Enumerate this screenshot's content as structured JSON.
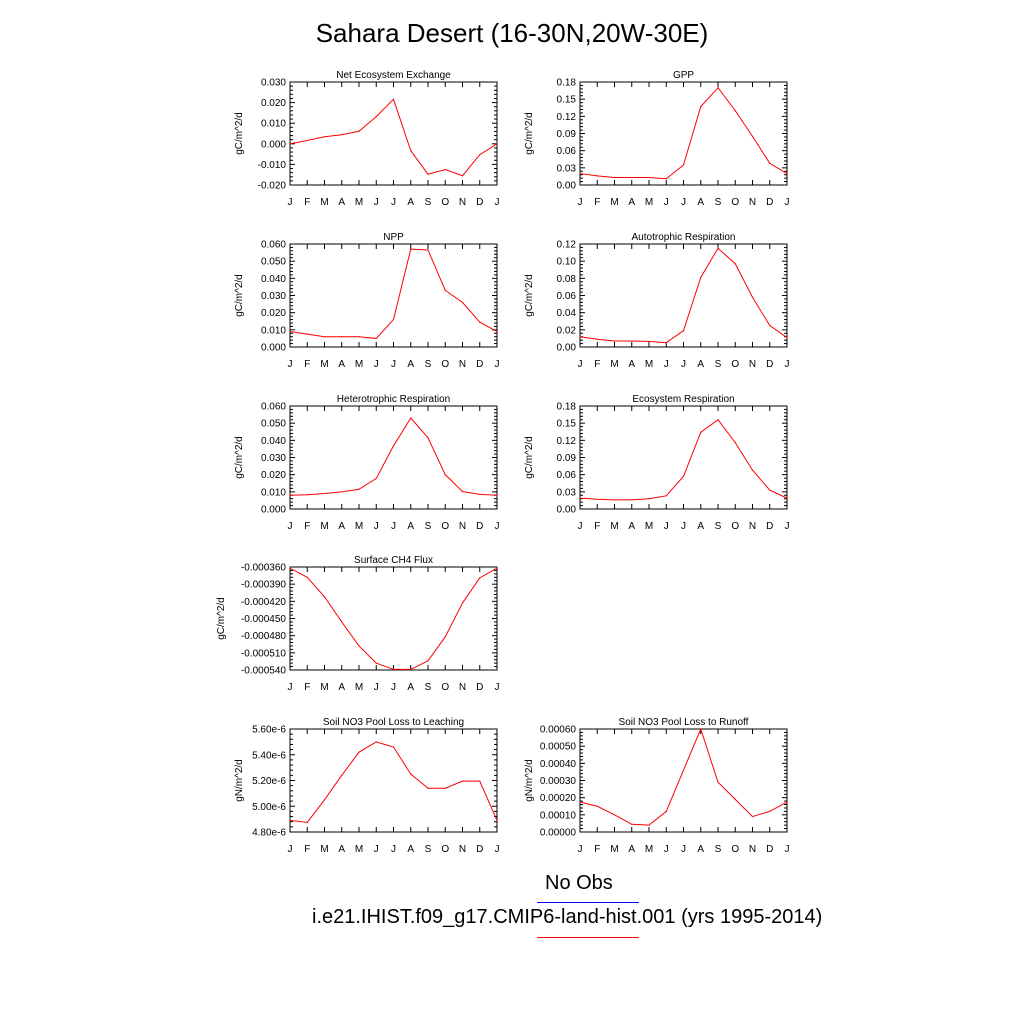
{
  "title": "Sahara Desert (16-30N,20W-30E)",
  "colors": {
    "model": "#ff0000",
    "obs": "#0000ff",
    "axis": "#000000"
  },
  "legend": [
    {
      "label": "No Obs",
      "color": "#0000ff"
    },
    {
      "label": "i.e21.IHIST.f09_g17.CMIP6-land-hist.001 (yrs 1995-2014)",
      "color": "#ff0000"
    }
  ],
  "chart_data": [
    {
      "type": "line",
      "title": "Net Ecosystem Exchange",
      "ylabel": "gC/m^2/d",
      "categories": [
        "J",
        "F",
        "M",
        "A",
        "M",
        "J",
        "J",
        "A",
        "S",
        "O",
        "N",
        "D",
        "J"
      ],
      "ylim": [
        -0.02,
        0.03
      ],
      "yticks": [
        -0.02,
        -0.01,
        0.0,
        0.01,
        0.02,
        0.03
      ],
      "ytick_labels": [
        "-0.020",
        "-0.010",
        "0.000",
        "0.010",
        "0.020",
        "0.030"
      ],
      "series": [
        {
          "values": [
            0.0,
            0.0016,
            0.0034,
            0.0044,
            0.0061,
            0.0132,
            0.0216,
            -0.0033,
            -0.0148,
            -0.0125,
            -0.0155,
            -0.0053,
            0.0
          ]
        }
      ]
    },
    {
      "type": "line",
      "title": "GPP",
      "ylabel": "gC/m^2/d",
      "categories": [
        "J",
        "F",
        "M",
        "A",
        "M",
        "J",
        "J",
        "A",
        "S",
        "O",
        "N",
        "D",
        "J"
      ],
      "ylim": [
        0,
        0.18
      ],
      "yticks": [
        0,
        0.03,
        0.06,
        0.09,
        0.12,
        0.15,
        0.18
      ],
      "ytick_labels": [
        "0.00",
        "0.03",
        "0.06",
        "0.09",
        "0.12",
        "0.15",
        "0.18"
      ],
      "series": [
        {
          "values": [
            0.02,
            0.016,
            0.013,
            0.013,
            0.013,
            0.011,
            0.035,
            0.137,
            0.17,
            0.13,
            0.085,
            0.038,
            0.02
          ]
        }
      ]
    },
    {
      "type": "line",
      "title": "NPP",
      "ylabel": "gC/m^2/d",
      "categories": [
        "J",
        "F",
        "M",
        "A",
        "M",
        "J",
        "J",
        "A",
        "S",
        "O",
        "N",
        "D",
        "J"
      ],
      "ylim": [
        0,
        0.06
      ],
      "yticks": [
        0,
        0.01,
        0.02,
        0.03,
        0.04,
        0.05,
        0.06
      ],
      "ytick_labels": [
        "0.000",
        "0.010",
        "0.020",
        "0.030",
        "0.040",
        "0.050",
        "0.060"
      ],
      "series": [
        {
          "values": [
            0.009,
            0.0075,
            0.006,
            0.006,
            0.006,
            0.005,
            0.016,
            0.057,
            0.0565,
            0.033,
            0.026,
            0.0145,
            0.009
          ]
        }
      ]
    },
    {
      "type": "line",
      "title": "Autotrophic Respiration",
      "ylabel": "gC/m^2/d",
      "categories": [
        "J",
        "F",
        "M",
        "A",
        "M",
        "J",
        "J",
        "A",
        "S",
        "O",
        "N",
        "D",
        "J"
      ],
      "ylim": [
        0,
        0.12
      ],
      "yticks": [
        0,
        0.02,
        0.04,
        0.06,
        0.08,
        0.1,
        0.12
      ],
      "ytick_labels": [
        "0.00",
        "0.02",
        "0.04",
        "0.06",
        "0.08",
        "0.10",
        "0.12"
      ],
      "series": [
        {
          "values": [
            0.012,
            0.009,
            0.007,
            0.007,
            0.0065,
            0.005,
            0.019,
            0.081,
            0.115,
            0.097,
            0.058,
            0.025,
            0.011
          ]
        }
      ]
    },
    {
      "type": "line",
      "title": "Heterotrophic Respiration",
      "ylabel": "gC/m^2/d",
      "categories": [
        "J",
        "F",
        "M",
        "A",
        "M",
        "J",
        "J",
        "A",
        "S",
        "O",
        "N",
        "D",
        "J"
      ],
      "ylim": [
        0,
        0.06
      ],
      "yticks": [
        0,
        0.01,
        0.02,
        0.03,
        0.04,
        0.05,
        0.06
      ],
      "ytick_labels": [
        "0.000",
        "0.010",
        "0.020",
        "0.030",
        "0.040",
        "0.050",
        "0.060"
      ],
      "series": [
        {
          "values": [
            0.008,
            0.0083,
            0.009,
            0.01,
            0.0115,
            0.0178,
            0.0368,
            0.053,
            0.0415,
            0.02,
            0.0102,
            0.0085,
            0.008
          ]
        }
      ]
    },
    {
      "type": "line",
      "title": "Ecosystem Respiration",
      "ylabel": "gC/m^2/d",
      "categories": [
        "J",
        "F",
        "M",
        "A",
        "M",
        "J",
        "J",
        "A",
        "S",
        "O",
        "N",
        "D",
        "J"
      ],
      "ylim": [
        0,
        0.18
      ],
      "yticks": [
        0,
        0.03,
        0.06,
        0.09,
        0.12,
        0.15,
        0.18
      ],
      "ytick_labels": [
        "0.00",
        "0.03",
        "0.06",
        "0.09",
        "0.12",
        "0.15",
        "0.18"
      ],
      "series": [
        {
          "values": [
            0.019,
            0.017,
            0.016,
            0.016,
            0.018,
            0.023,
            0.057,
            0.134,
            0.156,
            0.116,
            0.068,
            0.033,
            0.019
          ]
        }
      ]
    },
    {
      "type": "line",
      "title": "Surface CH4 Flux",
      "ylabel": "gC/m^2/d",
      "categories": [
        "J",
        "F",
        "M",
        "A",
        "M",
        "J",
        "J",
        "A",
        "S",
        "O",
        "N",
        "D",
        "J"
      ],
      "ylim": [
        -0.00054,
        -0.00036
      ],
      "yticks": [
        -0.00054,
        -0.00051,
        -0.00048,
        -0.00045,
        -0.00042,
        -0.00039,
        -0.00036
      ],
      "ytick_labels": [
        "-0.000540",
        "-0.000510",
        "-0.000480",
        "-0.000450",
        "-0.000420",
        "-0.000390",
        "-0.000360"
      ],
      "series": [
        {
          "values": [
            -0.000362,
            -0.000378,
            -0.000412,
            -0.000456,
            -0.000498,
            -0.000528,
            -0.000539,
            -0.000539,
            -0.000524,
            -0.000482,
            -0.000423,
            -0.000379,
            -0.000362
          ]
        }
      ]
    },
    {
      "type": "line",
      "title": "Soil NO3 Pool Loss to Leaching",
      "ylabel": "gN/m^2/d",
      "categories": [
        "J",
        "F",
        "M",
        "A",
        "M",
        "J",
        "J",
        "A",
        "S",
        "O",
        "N",
        "D",
        "J"
      ],
      "ylim": [
        4.8e-06,
        5.6e-06
      ],
      "yticks": [
        4.8e-06,
        5e-06,
        5.2e-06,
        5.4e-06,
        5.6e-06
      ],
      "ytick_labels": [
        "4.80e-6",
        "5.00e-6",
        "5.20e-6",
        "5.40e-6",
        "5.60e-6"
      ],
      "series": [
        {
          "values": [
            4.89e-06,
            4.875e-06,
            5.05e-06,
            5.24e-06,
            5.42e-06,
            5.5e-06,
            5.46e-06,
            5.25e-06,
            5.14e-06,
            5.14e-06,
            5.195e-06,
            5.195e-06,
            4.89e-06
          ]
        }
      ]
    },
    {
      "type": "line",
      "title": "Soil NO3 Pool Loss to Runoff",
      "ylabel": "gN/m^2/d",
      "categories": [
        "J",
        "F",
        "M",
        "A",
        "M",
        "J",
        "J",
        "A",
        "S",
        "O",
        "N",
        "D",
        "J"
      ],
      "ylim": [
        0,
        0.0006
      ],
      "yticks": [
        0,
        0.0001,
        0.0002,
        0.0003,
        0.0004,
        0.0005,
        0.0006
      ],
      "ytick_labels": [
        "0.00000",
        "0.00010",
        "0.00020",
        "0.00030",
        "0.00040",
        "0.00050",
        "0.00060"
      ],
      "series": [
        {
          "values": [
            0.000175,
            0.00015,
            0.0001,
            4.5e-05,
            4e-05,
            0.00012,
            0.00036,
            0.0006,
            0.00029,
            0.00019,
            9e-05,
            0.00012,
            0.000175
          ]
        }
      ]
    }
  ]
}
